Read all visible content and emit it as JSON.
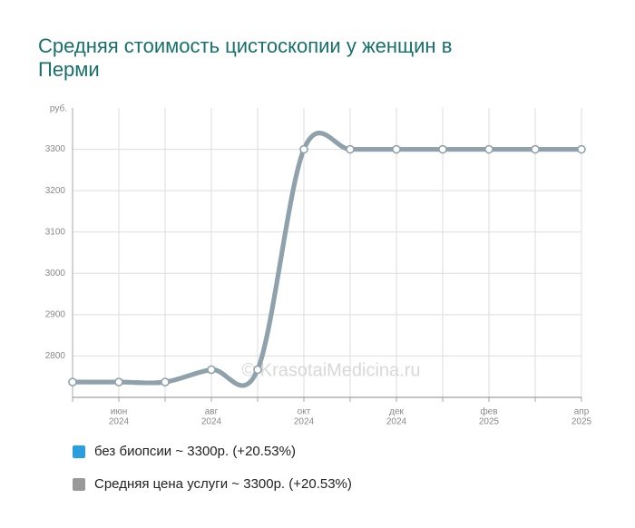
{
  "chart_data": {
    "type": "line",
    "title": "Средняя стоимость цистоскопии у женщин в Перми",
    "y_label": "руб.",
    "watermark": "© KrasotaiMedicina.ru",
    "categories": [
      null,
      [
        "июн",
        "2024"
      ],
      null,
      [
        "авг",
        "2024"
      ],
      null,
      [
        "окт",
        "2024"
      ],
      null,
      [
        "дек",
        "2024"
      ],
      null,
      [
        "фев",
        "2025"
      ],
      null,
      [
        "апр",
        "2025"
      ]
    ],
    "series": [
      {
        "name": "без биопсии ~ 3300р. (+20.53%)",
        "color": "#2a9fdf",
        "line_color": "#8fa1ab",
        "values": [
          2737,
          2737,
          2737,
          2767,
          2767,
          3300,
          3300,
          3300,
          3300,
          3300,
          3300,
          3300
        ]
      },
      {
        "name": "Средняя цена услуги ~ 3300р. (+20.53%)",
        "color": "#999999",
        "line_color": "#8fa1ab",
        "values": [
          2737,
          2737,
          2737,
          2767,
          2767,
          3300,
          3300,
          3300,
          3300,
          3300,
          3300,
          3300
        ]
      }
    ],
    "ylim": [
      2700,
      3400
    ],
    "yticks": [
      2800,
      2900,
      3000,
      3100,
      3200,
      3300
    ],
    "grid": true
  }
}
